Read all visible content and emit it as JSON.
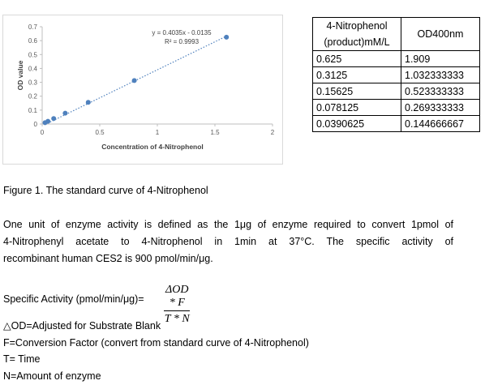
{
  "chart_data": {
    "type": "scatter",
    "x": [
      1.6,
      0.8,
      0.4,
      0.2,
      0.1,
      0.05,
      0.025
    ],
    "y": [
      0.625,
      0.3125,
      0.15625,
      0.078125,
      0.0390625,
      0.01953,
      0.00977
    ],
    "xlabel": "Concentration of 4-Nitrophenol",
    "ylabel": "OD value",
    "xlim": [
      0,
      2
    ],
    "ylim": [
      0,
      0.7
    ],
    "x_ticks": [
      "0",
      "0.5",
      "1",
      "1.5",
      "2"
    ],
    "y_ticks": [
      "0",
      "0.1",
      "0.2",
      "0.3",
      "0.4",
      "0.5",
      "0.6",
      "0.7"
    ],
    "equation": "y = 0.4035x - 0.0135",
    "r_squared": "R² = 0.9993",
    "trendline": "dotted linear",
    "grid": false,
    "colors": {
      "points": "#4f81bd",
      "trendline": "#4f81bd"
    }
  },
  "table": {
    "headers": [
      "4-Nitrophenol (product)mM/L",
      "OD400nm"
    ],
    "rows": [
      [
        "0.625",
        "1.909"
      ],
      [
        "0.3125",
        "1.032333333"
      ],
      [
        "0.15625",
        "0.523333333"
      ],
      [
        "0.078125",
        "0.269333333"
      ],
      [
        "0.0390625",
        "0.144666667"
      ]
    ]
  },
  "caption": "Figure 1. The standard curve of 4-Nitrophenol",
  "paragraph": [
    "One unit of enzyme activity is defined as the 1μg of enzyme required to convert 1pmol of",
    "4-Nitrophenyl acetate to 4-Nitrophenol in 1min at 37°C. The specific activity of",
    "recombinant human CES2 is 900 pmol/min/μg."
  ],
  "formula": {
    "label": "Specific Activity (pmol/min/μg)=",
    "numerator": "ΔOD * F",
    "denominator": "T * N"
  },
  "definitions": [
    "△OD=Adjusted for Substrate Blank",
    "F=Conversion Factor (convert from standard curve of 4-Nitrophenol)",
    "T= Time",
    "N=Amount of enzyme"
  ]
}
